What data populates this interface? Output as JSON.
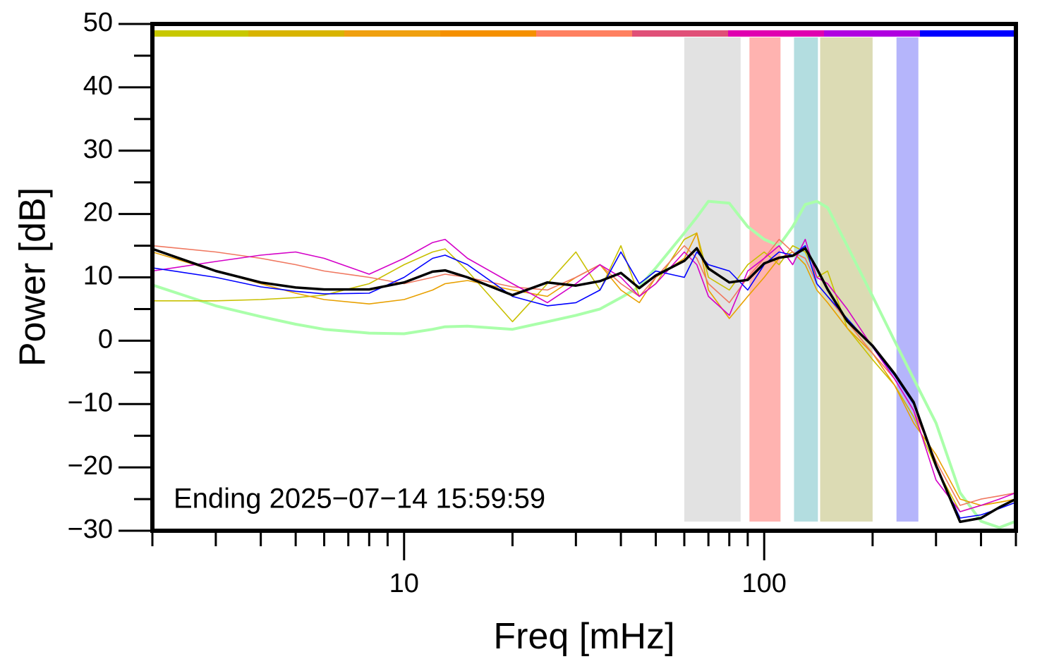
{
  "chart_data": {
    "type": "line",
    "xlabel": "Freq [mHz]",
    "ylabel": "Power [dB]",
    "annotation": "Ending 2025−07−14 15:59:59",
    "xscale": "log",
    "xlim": [
      2,
      500
    ],
    "ylim": [
      -30,
      50
    ],
    "xticks": [
      10,
      100
    ],
    "xminorticks": [
      2,
      3,
      4,
      5,
      6,
      7,
      8,
      9,
      20,
      30,
      40,
      50,
      60,
      70,
      80,
      90,
      200,
      300,
      400,
      500
    ],
    "yticks": [
      {
        "value": -30,
        "label": "−30"
      },
      {
        "value": -20,
        "label": "−20"
      },
      {
        "value": -10,
        "label": "−10"
      },
      0,
      10,
      20,
      30,
      40,
      50
    ],
    "yminorticks": [
      -25,
      -15,
      -5,
      5,
      15,
      25,
      35,
      45
    ],
    "colorbar": [
      "#c8c800",
      "#d8b400",
      "#f0a010",
      "#f59000",
      "#ff8060",
      "#e05078",
      "#e000b0",
      "#b000e0",
      "#0000ff"
    ],
    "bands": [
      {
        "x": [
          60,
          86
        ],
        "color": "#e2e2e2"
      },
      {
        "x": [
          91,
          111
        ],
        "color": "#ffb3b0"
      },
      {
        "x": [
          121,
          141
        ],
        "color": "#b3dde0"
      },
      {
        "x": [
          143,
          200
        ],
        "color": "#dcdbb4"
      },
      {
        "x": [
          233,
          268
        ],
        "color": "#b5b5fb"
      }
    ],
    "x": [
      2,
      3,
      4,
      5,
      6,
      8,
      10,
      12,
      13,
      15,
      20,
      25,
      30,
      35,
      40,
      45,
      50,
      60,
      65,
      70,
      80,
      90,
      100,
      110,
      120,
      130,
      140,
      150,
      170,
      200,
      230,
      260,
      300,
      350,
      400,
      450,
      500
    ],
    "series": [
      {
        "color": "#aaffaa",
        "width": 4,
        "values": [
          8.8,
          5.5,
          3.8,
          2.6,
          1.8,
          1.2,
          1.1,
          1.8,
          2.2,
          2.3,
          1.8,
          3,
          4,
          5,
          6.8,
          8.5,
          11.5,
          17,
          19.5,
          22,
          21.7,
          18,
          16,
          15,
          18,
          21.5,
          22,
          21,
          15,
          7,
          0,
          -6,
          -13,
          -24,
          -28.5,
          -29.5,
          -28.5
        ]
      },
      {
        "color": "#c8c000",
        "width": 1.6,
        "values": [
          6.3,
          6.3,
          6.5,
          6.8,
          7.2,
          9,
          12,
          14,
          14.5,
          11,
          3,
          9,
          14,
          8,
          15,
          7,
          9,
          16,
          17,
          10,
          8,
          12,
          14,
          12,
          15,
          14,
          10,
          11,
          2,
          -3,
          -7,
          -12,
          -20,
          -27,
          -26,
          -25.5,
          -25
        ]
      },
      {
        "color": "#e8a000",
        "width": 1.6,
        "values": [
          14,
          11,
          9,
          7.5,
          6.5,
          5.8,
          6.5,
          8,
          9,
          9.5,
          8,
          7,
          10,
          12,
          8,
          6,
          10,
          13,
          17,
          8,
          3.5,
          7,
          10,
          13,
          14,
          12,
          8,
          6,
          2,
          -2,
          -7,
          -13,
          -18,
          -25,
          -26,
          -25.5,
          -25
        ]
      },
      {
        "color": "#f07860",
        "width": 1.6,
        "values": [
          15,
          14,
          13,
          12,
          11,
          10,
          9,
          10,
          10.5,
          10,
          8.5,
          8,
          10,
          12,
          9,
          7,
          10,
          15,
          13,
          9,
          6,
          10,
          13,
          16,
          14,
          13,
          9,
          7,
          3,
          -2,
          -6,
          -11,
          -19,
          -26,
          -25,
          -24.5,
          -24
        ]
      },
      {
        "color": "#d400c8",
        "width": 1.6,
        "values": [
          11,
          12.5,
          13.5,
          14,
          13,
          10.5,
          13,
          15.5,
          16,
          13,
          9,
          6,
          9,
          12,
          10,
          7,
          9,
          14,
          12,
          7,
          4,
          11,
          13,
          15,
          12,
          16,
          10,
          9,
          5,
          -1,
          -6,
          -11,
          -22,
          -27,
          -26,
          -25,
          -24
        ]
      },
      {
        "color": "#0000ff",
        "width": 1.6,
        "values": [
          11.5,
          10,
          8.5,
          7.8,
          7.4,
          7.5,
          10,
          13,
          13.5,
          12,
          7,
          5.5,
          6,
          8,
          14,
          9,
          11,
          10,
          14,
          12,
          11,
          8,
          12,
          14,
          13.5,
          15,
          9,
          7,
          3.5,
          -1,
          -5.5,
          -10,
          -20,
          -28,
          -27.5,
          -26.5,
          -25.5
        ]
      },
      {
        "color": "#000000",
        "width": 3.5,
        "values": [
          14.5,
          11,
          9.2,
          8.4,
          8.1,
          8.1,
          9.2,
          10.9,
          11.1,
          10,
          7.2,
          9.2,
          8.7,
          9.4,
          10.7,
          8.3,
          10.3,
          12.6,
          14.6,
          11.4,
          9.2,
          9.6,
          12.2,
          13.1,
          13.4,
          14.6,
          11.4,
          8.1,
          3.1,
          -0.8,
          -5.2,
          -9.7,
          -19.7,
          -28.6,
          -28,
          -26.3,
          -25
        ]
      }
    ]
  }
}
